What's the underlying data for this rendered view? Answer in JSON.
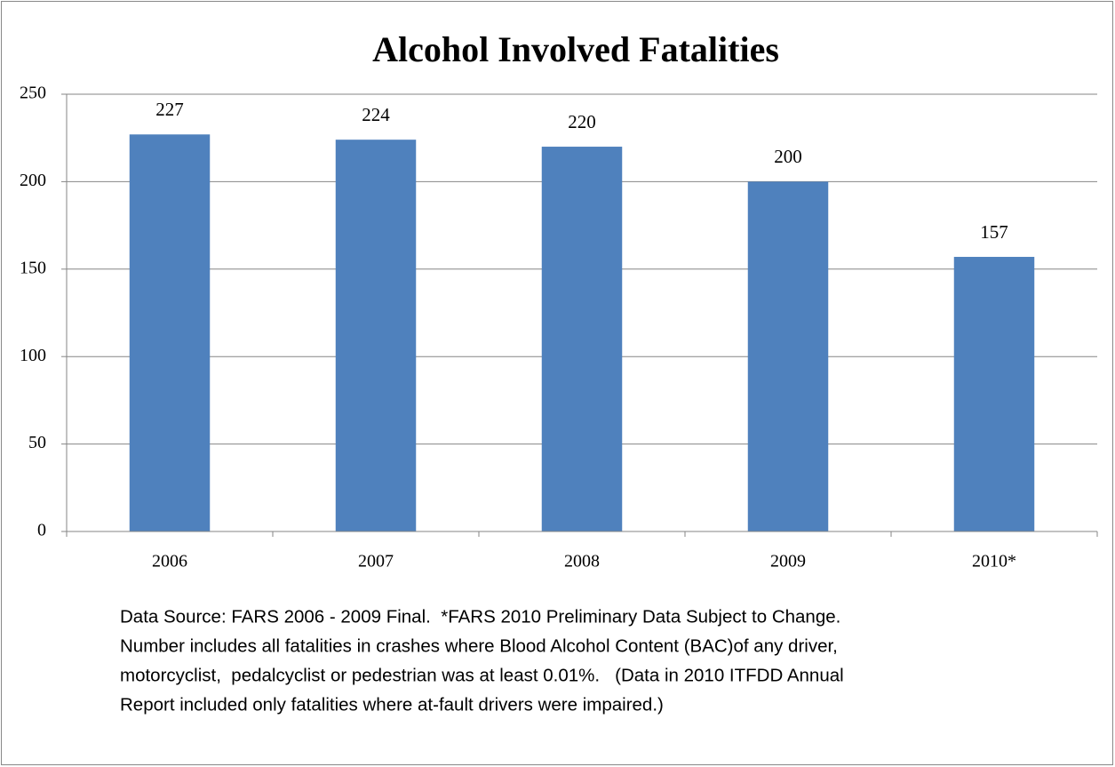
{
  "chart_data": {
    "type": "bar",
    "title": "Alcohol Involved Fatalities",
    "categories": [
      "2006",
      "2007",
      "2008",
      "2009",
      "2010*"
    ],
    "values": [
      227,
      224,
      220,
      200,
      157
    ],
    "color": "#4f81bd",
    "ylim": [
      0,
      250
    ],
    "yticks": [
      0,
      50,
      100,
      150,
      200,
      250
    ],
    "grid": true,
    "note": [
      "Data Source: FARS 2006 - 2009 Final.  *FARS 2010 Preliminary Data Subject to Change.",
      "Number includes all fatalities in crashes where Blood Alcohol Content (BAC)of any driver,",
      "motorcyclist,  pedalcyclist or pedestrian was at least 0.01%.   (Data in 2010 ITFDD Annual",
      "Report included only fatalities where at-fault drivers were impaired.)"
    ]
  }
}
